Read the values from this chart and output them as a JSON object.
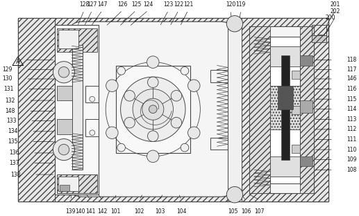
{
  "bg_color": "#ffffff",
  "fig_width": 5.17,
  "fig_height": 3.12,
  "dpi": 100,
  "lc": "#444444",
  "tc": "#111111",
  "fs": 5.5
}
